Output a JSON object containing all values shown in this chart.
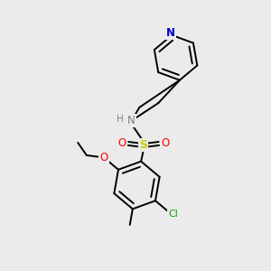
{
  "background_color": "#ebebeb",
  "bond_color": "#000000",
  "atom_colors": {
    "N_pyridine": "#0000cc",
    "N_amine": "#808080",
    "S": "#cccc00",
    "O": "#ff0000",
    "Cl": "#00aa00",
    "C": "#000000",
    "H": "#808080"
  },
  "figsize": [
    3.0,
    3.0
  ],
  "dpi": 100
}
